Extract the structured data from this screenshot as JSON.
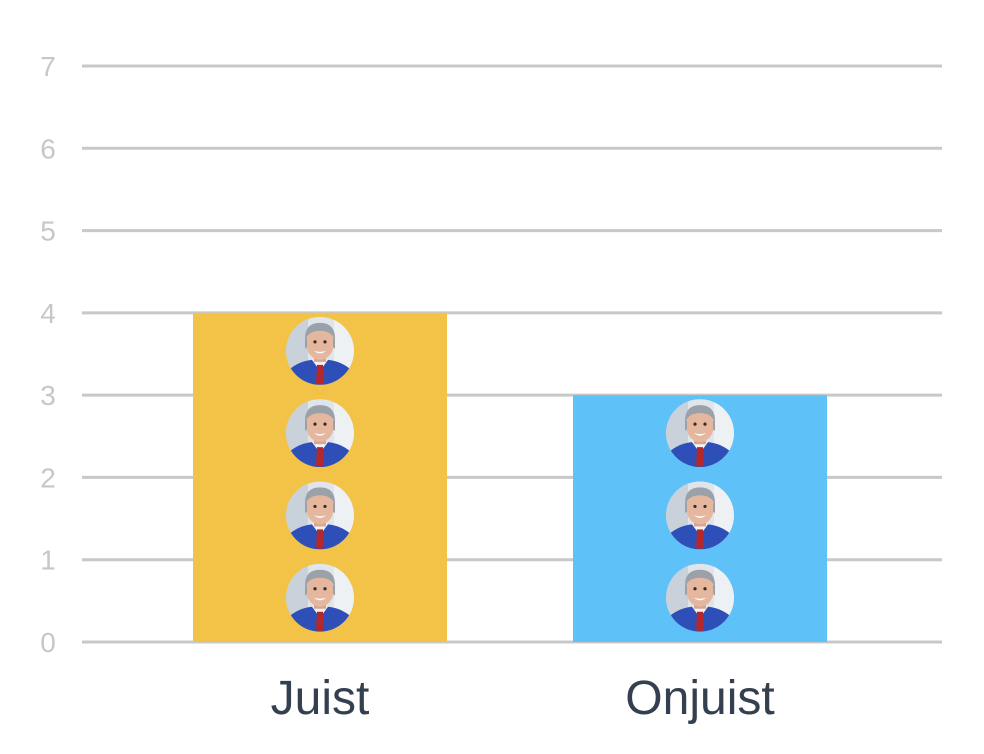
{
  "chart_data": {
    "type": "bar",
    "categories": [
      "Juist",
      "Onjuist"
    ],
    "values": [
      4,
      3
    ],
    "ylim": [
      0,
      7
    ],
    "yticks": [
      0,
      1,
      2,
      3,
      4,
      5,
      6,
      7
    ],
    "grid": true,
    "colors": [
      "#f2c347",
      "#5ec2f9"
    ],
    "marker": "person-avatar-icon",
    "title": "",
    "xlabel": "",
    "ylabel": ""
  }
}
